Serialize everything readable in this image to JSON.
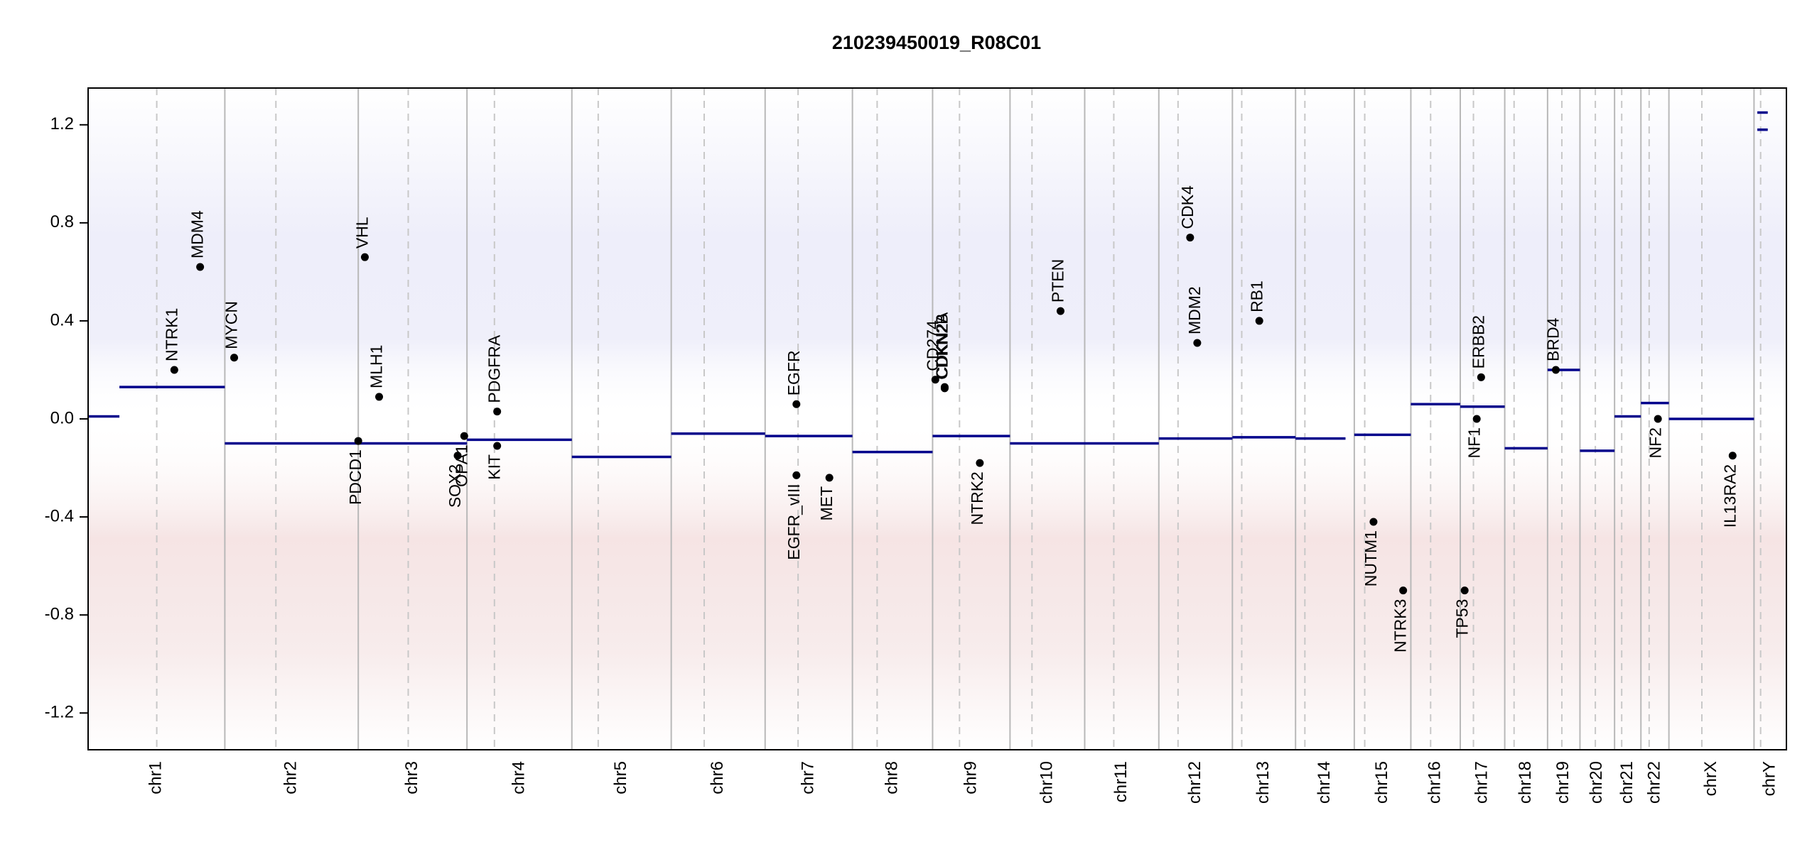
{
  "chart_data": {
    "type": "cnv",
    "title": "210239450019_R08C01",
    "xlim": [
      0,
      3093
    ],
    "ylim": [
      -1.35,
      1.35
    ],
    "yticks": [
      -1.2,
      -0.8,
      -0.4,
      {
        "value": 0,
        "label": "0.0"
      },
      0.4,
      0.8,
      1.2
    ],
    "segment_color": "#00008b",
    "gene_color": "#000000",
    "chromosomes": [
      {
        "name": "chr1",
        "start": 0,
        "end": 249,
        "centromere": 125
      },
      {
        "name": "chr2",
        "start": 249,
        "end": 492,
        "centromere": 342
      },
      {
        "name": "chr3",
        "start": 492,
        "end": 690,
        "centromere": 583
      },
      {
        "name": "chr4",
        "start": 690,
        "end": 881,
        "centromere": 740
      },
      {
        "name": "chr5",
        "start": 881,
        "end": 1062,
        "centromere": 929
      },
      {
        "name": "chr6",
        "start": 1062,
        "end": 1233,
        "centromere": 1122
      },
      {
        "name": "chr7",
        "start": 1233,
        "end": 1392,
        "centromere": 1293
      },
      {
        "name": "chr8",
        "start": 1392,
        "end": 1538,
        "centromere": 1437
      },
      {
        "name": "chr9",
        "start": 1538,
        "end": 1679,
        "centromere": 1587
      },
      {
        "name": "chr10",
        "start": 1679,
        "end": 1815,
        "centromere": 1719
      },
      {
        "name": "chr11",
        "start": 1815,
        "end": 1950,
        "centromere": 1868
      },
      {
        "name": "chr12",
        "start": 1950,
        "end": 2084,
        "centromere": 1985
      },
      {
        "name": "chr13",
        "start": 2084,
        "end": 2199,
        "centromere": 2101
      },
      {
        "name": "chr14",
        "start": 2199,
        "end": 2306,
        "centromere": 2216
      },
      {
        "name": "chr15",
        "start": 2306,
        "end": 2409,
        "centromere": 2325
      },
      {
        "name": "chr16",
        "start": 2409,
        "end": 2499,
        "centromere": 2445
      },
      {
        "name": "chr17",
        "start": 2499,
        "end": 2580,
        "centromere": 2523
      },
      {
        "name": "chr18",
        "start": 2580,
        "end": 2658,
        "centromere": 2597
      },
      {
        "name": "chr19",
        "start": 2658,
        "end": 2717,
        "centromere": 2684
      },
      {
        "name": "chr20",
        "start": 2717,
        "end": 2780,
        "centromere": 2745
      },
      {
        "name": "chr21",
        "start": 2780,
        "end": 2828,
        "centromere": 2793
      },
      {
        "name": "chr22",
        "start": 2828,
        "end": 2879,
        "centromere": 2843
      },
      {
        "name": "chrX",
        "start": 2879,
        "end": 3034,
        "centromere": 2939
      },
      {
        "name": "chrY",
        "start": 3034,
        "end": 3093,
        "centromere": 3046
      }
    ],
    "segments": [
      {
        "start": 0,
        "end": 57,
        "value": 0.01
      },
      {
        "start": 57,
        "end": 249,
        "value": 0.13
      },
      {
        "start": 249,
        "end": 690,
        "value": -0.1
      },
      {
        "start": 690,
        "end": 881,
        "value": -0.085
      },
      {
        "start": 881,
        "end": 1062,
        "value": -0.155
      },
      {
        "start": 1062,
        "end": 1233,
        "value": -0.06
      },
      {
        "start": 1233,
        "end": 1392,
        "value": -0.07
      },
      {
        "start": 1392,
        "end": 1538,
        "value": -0.135
      },
      {
        "start": 1538,
        "end": 1679,
        "value": -0.07
      },
      {
        "start": 1679,
        "end": 1950,
        "value": -0.1
      },
      {
        "start": 1950,
        "end": 2084,
        "value": -0.08
      },
      {
        "start": 2084,
        "end": 2199,
        "value": -0.075
      },
      {
        "start": 2199,
        "end": 2290,
        "value": -0.08
      },
      {
        "start": 2306,
        "end": 2409,
        "value": -0.065
      },
      {
        "start": 2409,
        "end": 2499,
        "value": 0.06
      },
      {
        "start": 2499,
        "end": 2580,
        "value": 0.05
      },
      {
        "start": 2580,
        "end": 2658,
        "value": -0.12
      },
      {
        "start": 2658,
        "end": 2717,
        "value": 0.2
      },
      {
        "start": 2717,
        "end": 2780,
        "value": -0.13
      },
      {
        "start": 2780,
        "end": 2828,
        "value": 0.01
      },
      {
        "start": 2828,
        "end": 2879,
        "value": 0.065
      },
      {
        "start": 2879,
        "end": 3034,
        "value": 0.0
      },
      {
        "start": 3040,
        "end": 3059,
        "value": 1.25
      },
      {
        "start": 3040,
        "end": 3059,
        "value": 1.18
      }
    ],
    "genes": [
      {
        "name": "NTRK1",
        "x": 157,
        "value": 0.2
      },
      {
        "name": "MDM4",
        "x": 204,
        "value": 0.62
      },
      {
        "name": "MYCN",
        "x": 266,
        "value": 0.25
      },
      {
        "name": "PDCD1",
        "x": 492,
        "value": -0.09
      },
      {
        "name": "VHL",
        "x": 504,
        "value": 0.66
      },
      {
        "name": "MLH1",
        "x": 530,
        "value": 0.09
      },
      {
        "name": "SOX2",
        "x": 673,
        "value": -0.15
      },
      {
        "name": "OPA1",
        "x": 685,
        "value": -0.07
      },
      {
        "name": "PDGFRA",
        "x": 745,
        "value": 0.03
      },
      {
        "name": "KIT",
        "x": 745,
        "value": -0.11
      },
      {
        "name": "EGFR",
        "x": 1290,
        "value": 0.06
      },
      {
        "name": "EGFR_vIII",
        "x": 1290,
        "value": -0.23
      },
      {
        "name": "MET",
        "x": 1350,
        "value": -0.24
      },
      {
        "name": "CD274",
        "x": 1543,
        "value": 0.16
      },
      {
        "name": "CDKN2A",
        "x": 1560,
        "value": 0.13
      },
      {
        "name": "CDKN2B",
        "x": 1560,
        "value": 0.125
      },
      {
        "name": "NTRK2",
        "x": 1624,
        "value": -0.18
      },
      {
        "name": "PTEN",
        "x": 1771,
        "value": 0.44
      },
      {
        "name": "CDK4",
        "x": 2007,
        "value": 0.74
      },
      {
        "name": "MDM2",
        "x": 2020,
        "value": 0.31
      },
      {
        "name": "RB1",
        "x": 2133,
        "value": 0.4
      },
      {
        "name": "NUTM1",
        "x": 2341,
        "value": -0.42
      },
      {
        "name": "NTRK3",
        "x": 2395,
        "value": -0.7
      },
      {
        "name": "TP53",
        "x": 2507,
        "value": -0.7
      },
      {
        "name": "NF1",
        "x": 2529,
        "value": 0.0
      },
      {
        "name": "ERBB2",
        "x": 2537,
        "value": 0.17
      },
      {
        "name": "BRD4",
        "x": 2673,
        "value": 0.2
      },
      {
        "name": "NF2",
        "x": 2859,
        "value": 0.0
      },
      {
        "name": "IL13RA2",
        "x": 2995,
        "value": -0.15
      }
    ]
  }
}
